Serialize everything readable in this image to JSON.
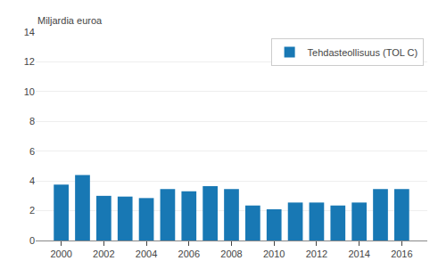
{
  "chart_data": {
    "type": "bar",
    "ylabel": "Miljardia euroa",
    "x": [
      2000,
      2001,
      2002,
      2003,
      2004,
      2005,
      2006,
      2007,
      2008,
      2009,
      2010,
      2011,
      2012,
      2013,
      2014,
      2015,
      2016
    ],
    "series": [
      {
        "name": "Tehdasteollisuus (TOL C)",
        "color": "#1878b4",
        "values": [
          3.75,
          4.4,
          3.0,
          2.95,
          2.85,
          3.45,
          3.3,
          3.65,
          3.45,
          2.35,
          2.1,
          2.55,
          2.55,
          2.35,
          2.55,
          3.45,
          3.45
        ]
      }
    ],
    "xlim": [
      1998.8,
      2017.2
    ],
    "xticks": [
      2000,
      2002,
      2004,
      2006,
      2008,
      2010,
      2012,
      2014,
      2016
    ],
    "ylim": [
      0,
      14
    ],
    "yticks": [
      0,
      2,
      4,
      6,
      8,
      10,
      12,
      14
    ],
    "grid": true,
    "legend": "upper right"
  }
}
